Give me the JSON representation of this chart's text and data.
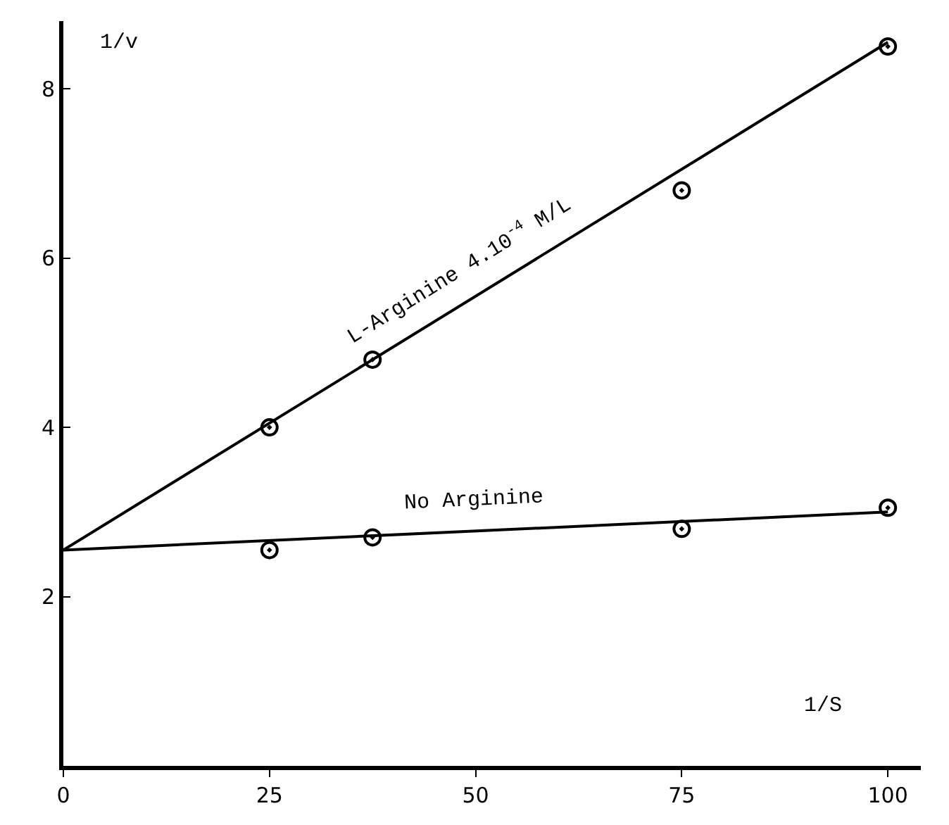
{
  "chart_data": {
    "type": "scatter",
    "xlabel": "1/S",
    "ylabel": "1/v",
    "marker": "circle",
    "series": [
      {
        "color": "#000000",
        "x": [
          25,
          37.5,
          75,
          100
        ],
        "values": [
          4.0,
          4.8,
          6.8,
          8.5
        ]
      },
      {
        "type": "line",
        "marker": "none",
        "name": "L-Arginine 4.10$^{-4}$ M/L",
        "color": "#000000",
        "x": [
          0,
          100
        ],
        "values": [
          2.55,
          8.55
        ]
      },
      {
        "color": "#000000",
        "x": [
          25,
          37.5,
          75,
          100
        ],
        "values": [
          2.55,
          2.7,
          2.8,
          3.05
        ]
      },
      {
        "type": "line",
        "marker": "none",
        "name": "No Arginine",
        "color": "#000000",
        "x": [
          0,
          100
        ],
        "values": [
          2.55,
          3.0
        ]
      }
    ],
    "xlim": [
      0,
      104
    ],
    "ylim": [
      0,
      8.8
    ],
    "xticks": [
      0,
      25,
      50,
      75,
      100
    ],
    "yticks": [
      2,
      4,
      6,
      8
    ]
  }
}
